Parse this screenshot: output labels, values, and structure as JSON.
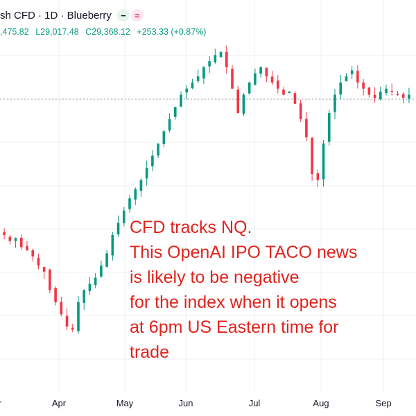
{
  "header": {
    "title": "sh CFD · 1D · Blueberry",
    "icons": [
      "minus-icon",
      "wave-icon"
    ],
    "dash_glyph": "−",
    "wave_glyph": "≈"
  },
  "ohlc": {
    "high": ",475.82",
    "low": "L29,017.48",
    "close": "C29,368.12",
    "change": "+253.33 (+0.87%)"
  },
  "x_axis": {
    "labels": [
      "r",
      "Apr",
      "May",
      "Jun",
      "Jul",
      "Aug",
      "Sep"
    ]
  },
  "annotation": {
    "lines": [
      "CFD tracks NQ.",
      "This OpenAI IPO TACO news",
      "is likely to be negative",
      "for the index when it opens",
      "at 6pm US Eastern time for",
      "trade"
    ]
  },
  "colors": {
    "up": "#089981",
    "down": "#f23645",
    "annotation": "#e0231d",
    "grid": "#eceff3"
  },
  "chart_data": {
    "type": "candlestick",
    "description_axis": "daily candles, Mar–Sep",
    "series_close_approx": [
      0.4,
      0.38,
      0.39,
      0.36,
      0.35,
      0.33,
      0.3,
      0.28,
      0.22,
      0.18,
      0.14,
      0.1,
      0.09,
      0.18,
      0.22,
      0.24,
      0.26,
      0.3,
      0.34,
      0.4,
      0.44,
      0.48,
      0.52,
      0.55,
      0.58,
      0.62,
      0.66,
      0.7,
      0.74,
      0.78,
      0.82,
      0.86,
      0.88,
      0.9,
      0.92,
      0.95,
      0.97,
      0.99,
      1.0,
      0.95,
      0.88,
      0.8,
      0.86,
      0.9,
      0.93,
      0.95,
      0.92,
      0.9,
      0.88,
      0.86,
      0.87,
      0.83,
      0.78,
      0.72,
      0.6,
      0.58,
      0.7,
      0.8,
      0.86,
      0.9,
      0.92,
      0.94,
      0.9,
      0.88,
      0.86,
      0.85,
      0.87,
      0.88,
      0.87,
      0.86,
      0.85,
      0.86
    ]
  }
}
